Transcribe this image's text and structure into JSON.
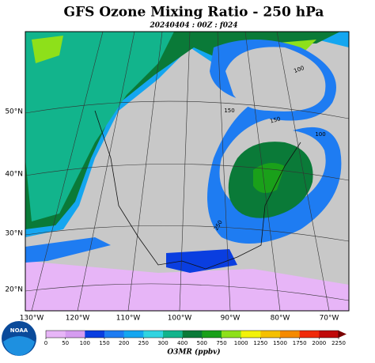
{
  "header": {
    "title": "GFS Ozone Mixing Ratio - 250 hPa",
    "subtitle": "20240404 : 00Z : f024"
  },
  "map": {
    "lat_labels": [
      "50°N",
      "40°N",
      "30°N",
      "20°N"
    ],
    "lon_labels": [
      "130°W",
      "120°W",
      "110°W",
      "100°W",
      "90°W",
      "80°W",
      "70°W"
    ],
    "contour_labels": [
      "100",
      "150",
      "250",
      "150",
      "100"
    ]
  },
  "colorbar": {
    "label": "O3MR (ppbv)",
    "levels": [
      0,
      50,
      100,
      150,
      200,
      250,
      300,
      400,
      500,
      750,
      1000,
      1250,
      1500,
      1750,
      2000,
      2250
    ],
    "colors": [
      "#e7b5f7",
      "#d59cf0",
      "#0a3ee0",
      "#1e7cf2",
      "#14a6f0",
      "#30d4e0",
      "#12b48c",
      "#0a7a38",
      "#1aa01a",
      "#8ee01a",
      "#f2f20a",
      "#f5c000",
      "#f58a00",
      "#f02a0a",
      "#c00a0a"
    ],
    "extend_color": "#7a0000"
  },
  "logo": {
    "text": "NOAA"
  }
}
